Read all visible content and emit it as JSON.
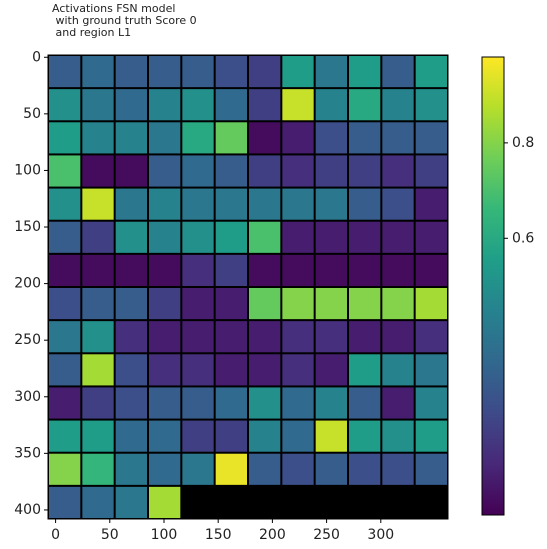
{
  "chart_data": {
    "type": "heatmap",
    "title": [
      "Activations FSN model",
      " with ground truth Score 0",
      " and region L1"
    ],
    "colormap": "viridis",
    "xlim": [
      -7,
      362
    ],
    "ylim": [
      408,
      -2
    ],
    "xticks": [
      0,
      50,
      100,
      150,
      200,
      250,
      300
    ],
    "yticks": [
      0,
      50,
      100,
      150,
      200,
      250,
      300,
      350,
      400
    ],
    "values": [
      [
        0.3,
        0.35,
        0.3,
        0.3,
        0.3,
        0.25,
        0.2,
        0.55,
        0.4,
        0.55,
        0.3,
        0.55
      ],
      [
        0.5,
        0.4,
        0.35,
        0.45,
        0.5,
        0.35,
        0.2,
        0.9,
        0.45,
        0.6,
        0.45,
        0.5
      ],
      [
        0.55,
        0.45,
        0.45,
        0.4,
        0.6,
        0.75,
        0.05,
        0.1,
        0.25,
        0.3,
        0.3,
        0.3
      ],
      [
        0.7,
        0.05,
        0.05,
        0.3,
        0.35,
        0.3,
        0.2,
        0.15,
        0.2,
        0.2,
        0.15,
        0.2
      ],
      [
        0.5,
        0.9,
        0.4,
        0.45,
        0.4,
        0.4,
        0.4,
        0.4,
        0.4,
        0.3,
        0.25,
        0.1
      ],
      [
        0.3,
        0.2,
        0.5,
        0.45,
        0.5,
        0.55,
        0.7,
        0.1,
        0.1,
        0.1,
        0.1,
        0.1
      ],
      [
        0.05,
        0.05,
        0.05,
        0.05,
        0.15,
        0.2,
        0.05,
        0.05,
        0.05,
        0.05,
        0.05,
        0.05
      ],
      [
        0.25,
        0.3,
        0.3,
        0.2,
        0.1,
        0.1,
        0.75,
        0.8,
        0.8,
        0.8,
        0.8,
        0.85
      ],
      [
        0.4,
        0.5,
        0.15,
        0.1,
        0.1,
        0.1,
        0.1,
        0.15,
        0.15,
        0.1,
        0.1,
        0.15
      ],
      [
        0.3,
        0.85,
        0.25,
        0.15,
        0.15,
        0.1,
        0.1,
        0.15,
        0.1,
        0.55,
        0.45,
        0.4
      ],
      [
        0.1,
        0.2,
        0.25,
        0.3,
        0.3,
        0.35,
        0.5,
        0.35,
        0.45,
        0.3,
        0.1,
        0.45
      ],
      [
        0.55,
        0.55,
        0.35,
        0.35,
        0.2,
        0.2,
        0.45,
        0.35,
        0.9,
        0.55,
        0.5,
        0.55
      ],
      [
        0.8,
        0.65,
        0.4,
        0.35,
        0.4,
        0.95,
        0.3,
        0.25,
        0.3,
        0.25,
        0.25,
        0.3
      ],
      [
        0.3,
        0.35,
        0.4,
        0.85,
        null,
        null,
        null,
        null,
        null,
        null,
        null,
        null
      ]
    ],
    "colorbar": {
      "lim": [
        0.02,
        0.98
      ],
      "ticks": [
        0.6,
        0.8
      ]
    }
  }
}
